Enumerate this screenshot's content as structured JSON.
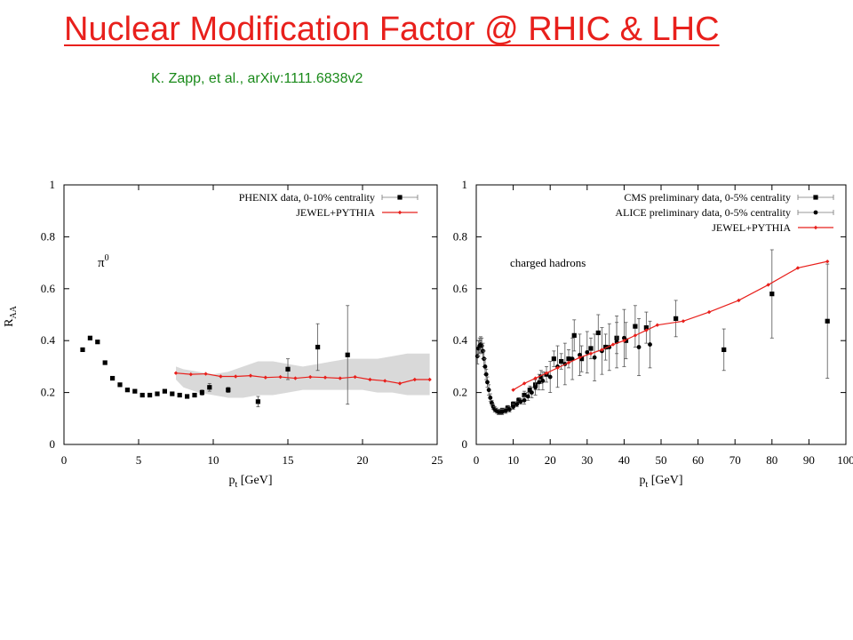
{
  "slide": {
    "title": "Nuclear Modification Factor @ RHIC & LHC",
    "citation": "K. Zapp, et al., arXiv:1111.6838v2"
  },
  "chart_data": [
    {
      "type": "scatter",
      "xlabel": "p_t [GeV]",
      "xlabel_parts": {
        "base": "p",
        "sub": "t",
        "rest": " [GeV]"
      },
      "ylabel": "R_AA",
      "ylabel_parts": {
        "base": "R",
        "sub": "AA"
      },
      "annotation": "π0",
      "annotation_parts": {
        "base": "π",
        "sup": "0"
      },
      "xlim": [
        0,
        25
      ],
      "ylim": [
        0,
        1
      ],
      "xticks": [
        0,
        5,
        10,
        15,
        20,
        25
      ],
      "yticks": [
        0,
        0.2,
        0.4,
        0.6,
        0.8,
        1
      ],
      "grid": false,
      "legend_position": "top-right",
      "band": {
        "x": [
          7.5,
          8,
          9,
          10,
          11,
          12,
          13,
          14,
          15,
          16,
          17,
          18,
          19,
          20,
          21,
          22,
          23,
          24,
          24.5
        ],
        "upper": [
          0.3,
          0.29,
          0.28,
          0.27,
          0.28,
          0.3,
          0.32,
          0.32,
          0.31,
          0.3,
          0.31,
          0.32,
          0.33,
          0.33,
          0.33,
          0.34,
          0.35,
          0.35,
          0.35
        ],
        "lower": [
          0.25,
          0.22,
          0.2,
          0.19,
          0.18,
          0.18,
          0.19,
          0.19,
          0.2,
          0.21,
          0.21,
          0.21,
          0.21,
          0.21,
          0.2,
          0.2,
          0.19,
          0.19,
          0.19
        ]
      },
      "series": [
        {
          "name": "PHENIX data, 0-10% centrality",
          "marker": "square",
          "color": "#000000",
          "x": [
            1.25,
            1.75,
            2.25,
            2.75,
            3.25,
            3.75,
            4.25,
            4.75,
            5.25,
            5.75,
            6.25,
            6.75,
            7.25,
            7.75,
            8.25,
            8.75,
            9.25,
            9.75,
            11,
            13,
            15,
            17,
            19
          ],
          "y": [
            0.365,
            0.41,
            0.395,
            0.315,
            0.255,
            0.23,
            0.21,
            0.205,
            0.19,
            0.19,
            0.195,
            0.205,
            0.195,
            0.19,
            0.185,
            0.19,
            0.2,
            0.22,
            0.21,
            0.165,
            0.29,
            0.375,
            0.345
          ],
          "err": [
            0,
            0,
            0,
            0,
            0,
            0,
            0,
            0,
            0,
            0,
            0,
            0,
            0,
            0,
            0,
            0,
            0.01,
            0.015,
            0.01,
            0.02,
            0.04,
            0.09,
            0.19
          ]
        },
        {
          "name": "JEWEL+PYTHIA",
          "marker": "diamond-line",
          "color": "#e8201c",
          "x": [
            7.5,
            8.5,
            9.5,
            10.5,
            11.5,
            12.5,
            13.5,
            14.5,
            15.5,
            16.5,
            17.5,
            18.5,
            19.5,
            20.5,
            21.5,
            22.5,
            23.5,
            24.5
          ],
          "y": [
            0.275,
            0.27,
            0.272,
            0.262,
            0.262,
            0.265,
            0.258,
            0.26,
            0.255,
            0.26,
            0.258,
            0.255,
            0.26,
            0.25,
            0.245,
            0.235,
            0.25,
            0.25
          ]
        }
      ]
    },
    {
      "type": "scatter",
      "xlabel": "p_t [GeV]",
      "xlabel_parts": {
        "base": "p",
        "sub": "t",
        "rest": " [GeV]"
      },
      "annotation": "charged hadrons",
      "xlim": [
        0,
        100
      ],
      "ylim": [
        0,
        1
      ],
      "xticks": [
        0,
        10,
        20,
        30,
        40,
        50,
        60,
        70,
        80,
        90,
        100
      ],
      "yticks": [
        0,
        0.2,
        0.4,
        0.6,
        0.8,
        1
      ],
      "grid": false,
      "legend_position": "top-right",
      "series": [
        {
          "name": "CMS preliminary data, 0-5% centrality",
          "marker": "square",
          "color": "#000000",
          "x": [
            7,
            8.5,
            10,
            11.5,
            13,
            14.5,
            16,
            17.5,
            19,
            21,
            23,
            25,
            26.5,
            28.5,
            31,
            33,
            35,
            38,
            40.5,
            43,
            46,
            54,
            67,
            80,
            95
          ],
          "y": [
            0.13,
            0.14,
            0.155,
            0.17,
            0.19,
            0.21,
            0.23,
            0.26,
            0.27,
            0.33,
            0.32,
            0.33,
            0.42,
            0.33,
            0.37,
            0.43,
            0.375,
            0.41,
            0.4,
            0.455,
            0.45,
            0.485,
            0.365,
            0.58,
            0.475
          ],
          "err": [
            0.01,
            0.01,
            0.01,
            0.01,
            0.015,
            0.015,
            0.02,
            0.025,
            0.03,
            0.03,
            0.03,
            0.035,
            0.06,
            0.05,
            0.04,
            0.07,
            0.05,
            0.06,
            0.07,
            0.08,
            0.06,
            0.07,
            0.08,
            0.17,
            0.22
          ]
        },
        {
          "name": "ALICE preliminary data, 0-5% centrality",
          "marker": "circle",
          "color": "#000000",
          "x": [
            0.3,
            0.6,
            0.9,
            1.2,
            1.5,
            1.8,
            2.1,
            2.4,
            2.7,
            3.0,
            3.4,
            3.8,
            4.2,
            4.6,
            5.0,
            5.5,
            6.0,
            6.5,
            7.0,
            8.0,
            9.0,
            10,
            11,
            12,
            13,
            14,
            15,
            16,
            17,
            18,
            20,
            22,
            24,
            26,
            28,
            30,
            32,
            34,
            36,
            38,
            40,
            44,
            47
          ],
          "y": [
            0.34,
            0.37,
            0.38,
            0.385,
            0.38,
            0.36,
            0.33,
            0.3,
            0.27,
            0.24,
            0.21,
            0.18,
            0.16,
            0.145,
            0.135,
            0.13,
            0.125,
            0.125,
            0.125,
            0.13,
            0.135,
            0.145,
            0.155,
            0.165,
            0.17,
            0.185,
            0.2,
            0.22,
            0.24,
            0.245,
            0.26,
            0.3,
            0.31,
            0.33,
            0.345,
            0.355,
            0.335,
            0.36,
            0.375,
            0.395,
            0.41,
            0.375,
            0.385
          ],
          "err": [
            0.03,
            0.03,
            0.03,
            0.03,
            0.03,
            0.03,
            0.03,
            0.03,
            0.02,
            0.02,
            0.02,
            0.015,
            0.01,
            0.01,
            0.01,
            0.01,
            0.01,
            0.01,
            0.01,
            0.01,
            0.01,
            0.01,
            0.01,
            0.01,
            0.015,
            0.015,
            0.02,
            0.03,
            0.03,
            0.035,
            0.06,
            0.08,
            0.08,
            0.08,
            0.08,
            0.08,
            0.09,
            0.09,
            0.09,
            0.1,
            0.11,
            0.11,
            0.09
          ]
        },
        {
          "name": "JEWEL+PYTHIA",
          "marker": "diamond-line",
          "color": "#e8201c",
          "x": [
            10,
            13,
            16,
            19,
            22,
            25,
            28,
            31,
            34,
            37,
            40,
            43,
            46,
            49,
            56,
            63,
            71,
            79,
            87,
            95
          ],
          "y": [
            0.21,
            0.235,
            0.255,
            0.275,
            0.295,
            0.315,
            0.335,
            0.35,
            0.365,
            0.385,
            0.4,
            0.42,
            0.44,
            0.46,
            0.475,
            0.51,
            0.555,
            0.615,
            0.68,
            0.705
          ]
        }
      ]
    }
  ]
}
